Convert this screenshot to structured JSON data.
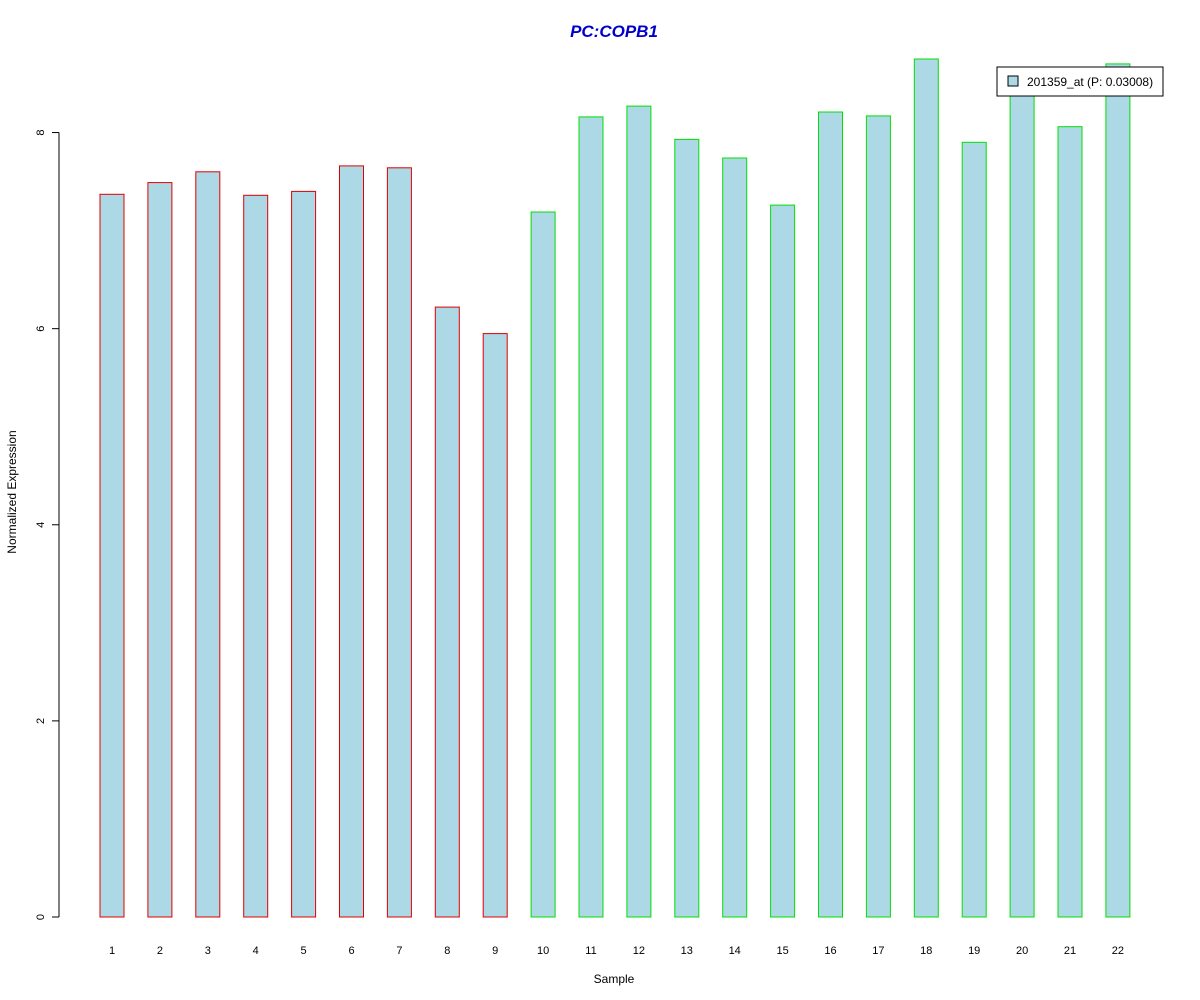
{
  "chart_data": {
    "type": "bar",
    "title": "PC:COPB1",
    "xlabel": "Sample",
    "ylabel": "Normalized Expression",
    "categories": [
      "1",
      "2",
      "3",
      "4",
      "5",
      "6",
      "7",
      "8",
      "9",
      "10",
      "11",
      "12",
      "13",
      "14",
      "15",
      "16",
      "17",
      "18",
      "19",
      "20",
      "21",
      "22"
    ],
    "values": [
      7.37,
      7.49,
      7.6,
      7.36,
      7.4,
      7.66,
      7.64,
      6.22,
      5.95,
      7.19,
      8.16,
      8.27,
      7.93,
      7.74,
      7.26,
      8.21,
      8.17,
      8.75,
      7.9,
      8.43,
      8.06,
      8.7
    ],
    "groups": [
      {
        "samples": [
          "1",
          "2",
          "3",
          "4",
          "5",
          "6",
          "7",
          "8",
          "9"
        ],
        "border_color": "#e00000"
      },
      {
        "samples": [
          "10",
          "11",
          "12",
          "13",
          "14",
          "15",
          "16",
          "17",
          "18",
          "19",
          "20",
          "21",
          "22"
        ],
        "border_color": "#00e000"
      }
    ],
    "bar_fill": "#add8e6",
    "title_color": "#0000cc",
    "ylim": [
      0,
      8.75
    ],
    "yticks": [
      0,
      2,
      4,
      6,
      8
    ],
    "grid": false,
    "legend": {
      "placement": "top-right",
      "entries": [
        {
          "label": "201359_at (P: 0.03008)",
          "fill": "#add8e6"
        }
      ]
    }
  }
}
